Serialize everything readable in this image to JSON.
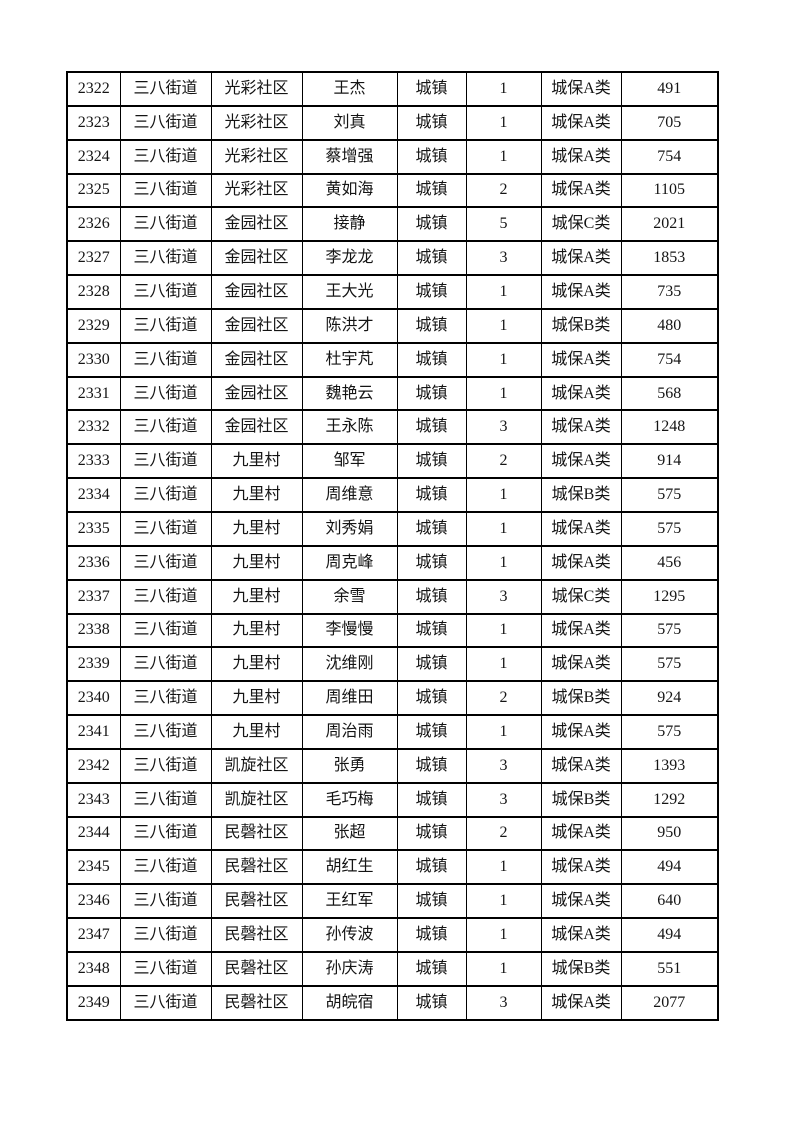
{
  "page": {
    "background_color": "#ffffff",
    "text_color": "#141414",
    "grid_color": "#000000"
  },
  "table": {
    "rows": [
      [
        "2322",
        "三八街道",
        "光彩社区",
        "王杰",
        "城镇",
        "1",
        "城保A类",
        "491"
      ],
      [
        "2323",
        "三八街道",
        "光彩社区",
        "刘真",
        "城镇",
        "1",
        "城保A类",
        "705"
      ],
      [
        "2324",
        "三八街道",
        "光彩社区",
        "蔡增强",
        "城镇",
        "1",
        "城保A类",
        "754"
      ],
      [
        "2325",
        "三八街道",
        "光彩社区",
        "黄如海",
        "城镇",
        "2",
        "城保A类",
        "1105"
      ],
      [
        "2326",
        "三八街道",
        "金园社区",
        "接静",
        "城镇",
        "5",
        "城保C类",
        "2021"
      ],
      [
        "2327",
        "三八街道",
        "金园社区",
        "李龙龙",
        "城镇",
        "3",
        "城保A类",
        "1853"
      ],
      [
        "2328",
        "三八街道",
        "金园社区",
        "王大光",
        "城镇",
        "1",
        "城保A类",
        "735"
      ],
      [
        "2329",
        "三八街道",
        "金园社区",
        "陈洪才",
        "城镇",
        "1",
        "城保B类",
        "480"
      ],
      [
        "2330",
        "三八街道",
        "金园社区",
        "杜宇芃",
        "城镇",
        "1",
        "城保A类",
        "754"
      ],
      [
        "2331",
        "三八街道",
        "金园社区",
        "魏艳云",
        "城镇",
        "1",
        "城保A类",
        "568"
      ],
      [
        "2332",
        "三八街道",
        "金园社区",
        "王永陈",
        "城镇",
        "3",
        "城保A类",
        "1248"
      ],
      [
        "2333",
        "三八街道",
        "九里村",
        "邹军",
        "城镇",
        "2",
        "城保A类",
        "914"
      ],
      [
        "2334",
        "三八街道",
        "九里村",
        "周维意",
        "城镇",
        "1",
        "城保B类",
        "575"
      ],
      [
        "2335",
        "三八街道",
        "九里村",
        "刘秀娟",
        "城镇",
        "1",
        "城保A类",
        "575"
      ],
      [
        "2336",
        "三八街道",
        "九里村",
        "周克峰",
        "城镇",
        "1",
        "城保A类",
        "456"
      ],
      [
        "2337",
        "三八街道",
        "九里村",
        "余雪",
        "城镇",
        "3",
        "城保C类",
        "1295"
      ],
      [
        "2338",
        "三八街道",
        "九里村",
        "李慢慢",
        "城镇",
        "1",
        "城保A类",
        "575"
      ],
      [
        "2339",
        "三八街道",
        "九里村",
        "沈维刚",
        "城镇",
        "1",
        "城保A类",
        "575"
      ],
      [
        "2340",
        "三八街道",
        "九里村",
        "周维田",
        "城镇",
        "2",
        "城保B类",
        "924"
      ],
      [
        "2341",
        "三八街道",
        "九里村",
        "周治雨",
        "城镇",
        "1",
        "城保A类",
        "575"
      ],
      [
        "2342",
        "三八街道",
        "凯旋社区",
        "张勇",
        "城镇",
        "3",
        "城保A类",
        "1393"
      ],
      [
        "2343",
        "三八街道",
        "凯旋社区",
        "毛巧梅",
        "城镇",
        "3",
        "城保B类",
        "1292"
      ],
      [
        "2344",
        "三八街道",
        "民磬社区",
        "张超",
        "城镇",
        "2",
        "城保A类",
        "950"
      ],
      [
        "2345",
        "三八街道",
        "民磬社区",
        "胡红生",
        "城镇",
        "1",
        "城保A类",
        "494"
      ],
      [
        "2346",
        "三八街道",
        "民磬社区",
        "王红军",
        "城镇",
        "1",
        "城保A类",
        "640"
      ],
      [
        "2347",
        "三八街道",
        "民磬社区",
        "孙传波",
        "城镇",
        "1",
        "城保A类",
        "494"
      ],
      [
        "2348",
        "三八街道",
        "民磬社区",
        "孙庆涛",
        "城镇",
        "1",
        "城保B类",
        "551"
      ],
      [
        "2349",
        "三八街道",
        "民磬社区",
        "胡皖宿",
        "城镇",
        "3",
        "城保A类",
        "2077"
      ]
    ]
  }
}
